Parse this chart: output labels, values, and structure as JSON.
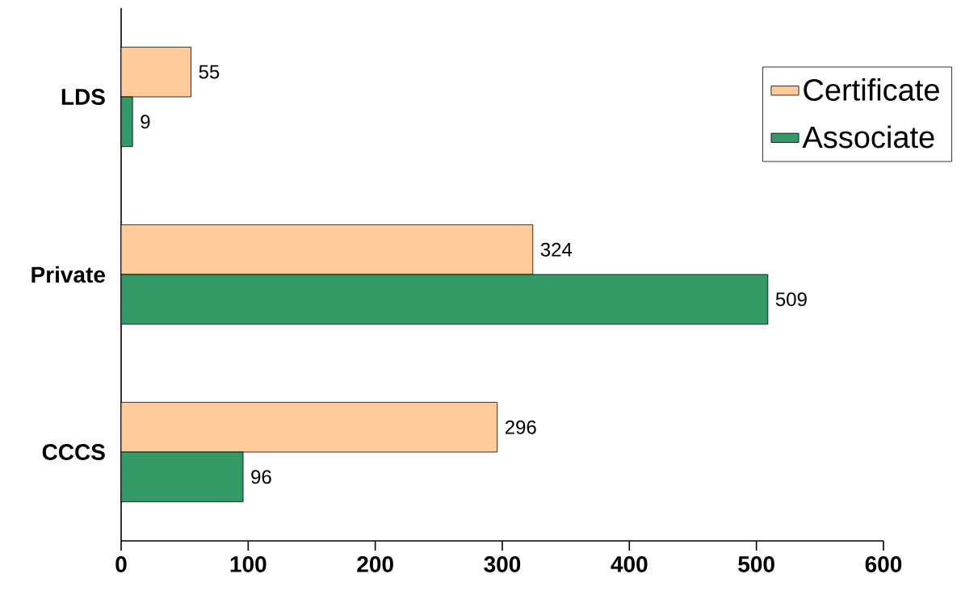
{
  "chart_data": {
    "type": "bar",
    "orientation": "horizontal",
    "categories": [
      "LDS",
      "Private",
      "CCCS"
    ],
    "series": [
      {
        "name": "Certificate",
        "color": "#ffcc99",
        "values": [
          55,
          324,
          296
        ]
      },
      {
        "name": "Associate",
        "color": "#339966",
        "values": [
          9,
          509,
          96
        ]
      }
    ],
    "xlim": [
      0,
      600
    ],
    "xticks": [
      0,
      100,
      200,
      300,
      400,
      500,
      600
    ],
    "data_labels": true,
    "legend": "top right"
  }
}
